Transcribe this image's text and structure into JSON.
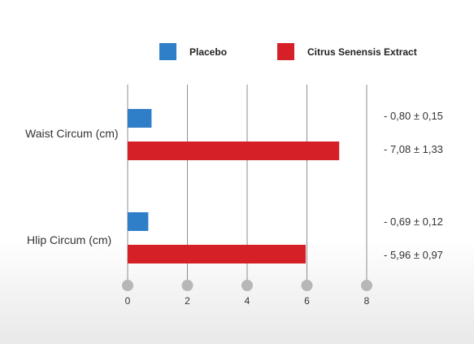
{
  "colors": {
    "placebo": "#2f7ec8",
    "extract": "#d62027",
    "gridline": "#8e8e8e",
    "tick_dot": "#b7b7b7"
  },
  "chart_data": {
    "type": "bar",
    "orientation": "horizontal",
    "categories": [
      "Waist Circum (cm)",
      "Hlip Circum (cm)"
    ],
    "series": [
      {
        "name": "Placebo",
        "color": "#2f7ec8",
        "values": [
          0.8,
          0.69
        ],
        "labels": [
          "- 0,80 ± 0,15",
          "- 0,69 ± 0,12"
        ]
      },
      {
        "name": "Citrus Senensis Extract",
        "color": "#d62027",
        "values": [
          7.08,
          5.96
        ],
        "labels": [
          "- 7,08 ± 1,33",
          "- 5,96 ± 0,97"
        ]
      }
    ],
    "xticks": [
      "0",
      "2",
      "4",
      "6",
      "8"
    ],
    "xlim": [
      0,
      8
    ],
    "grid": true,
    "legend": "top"
  }
}
